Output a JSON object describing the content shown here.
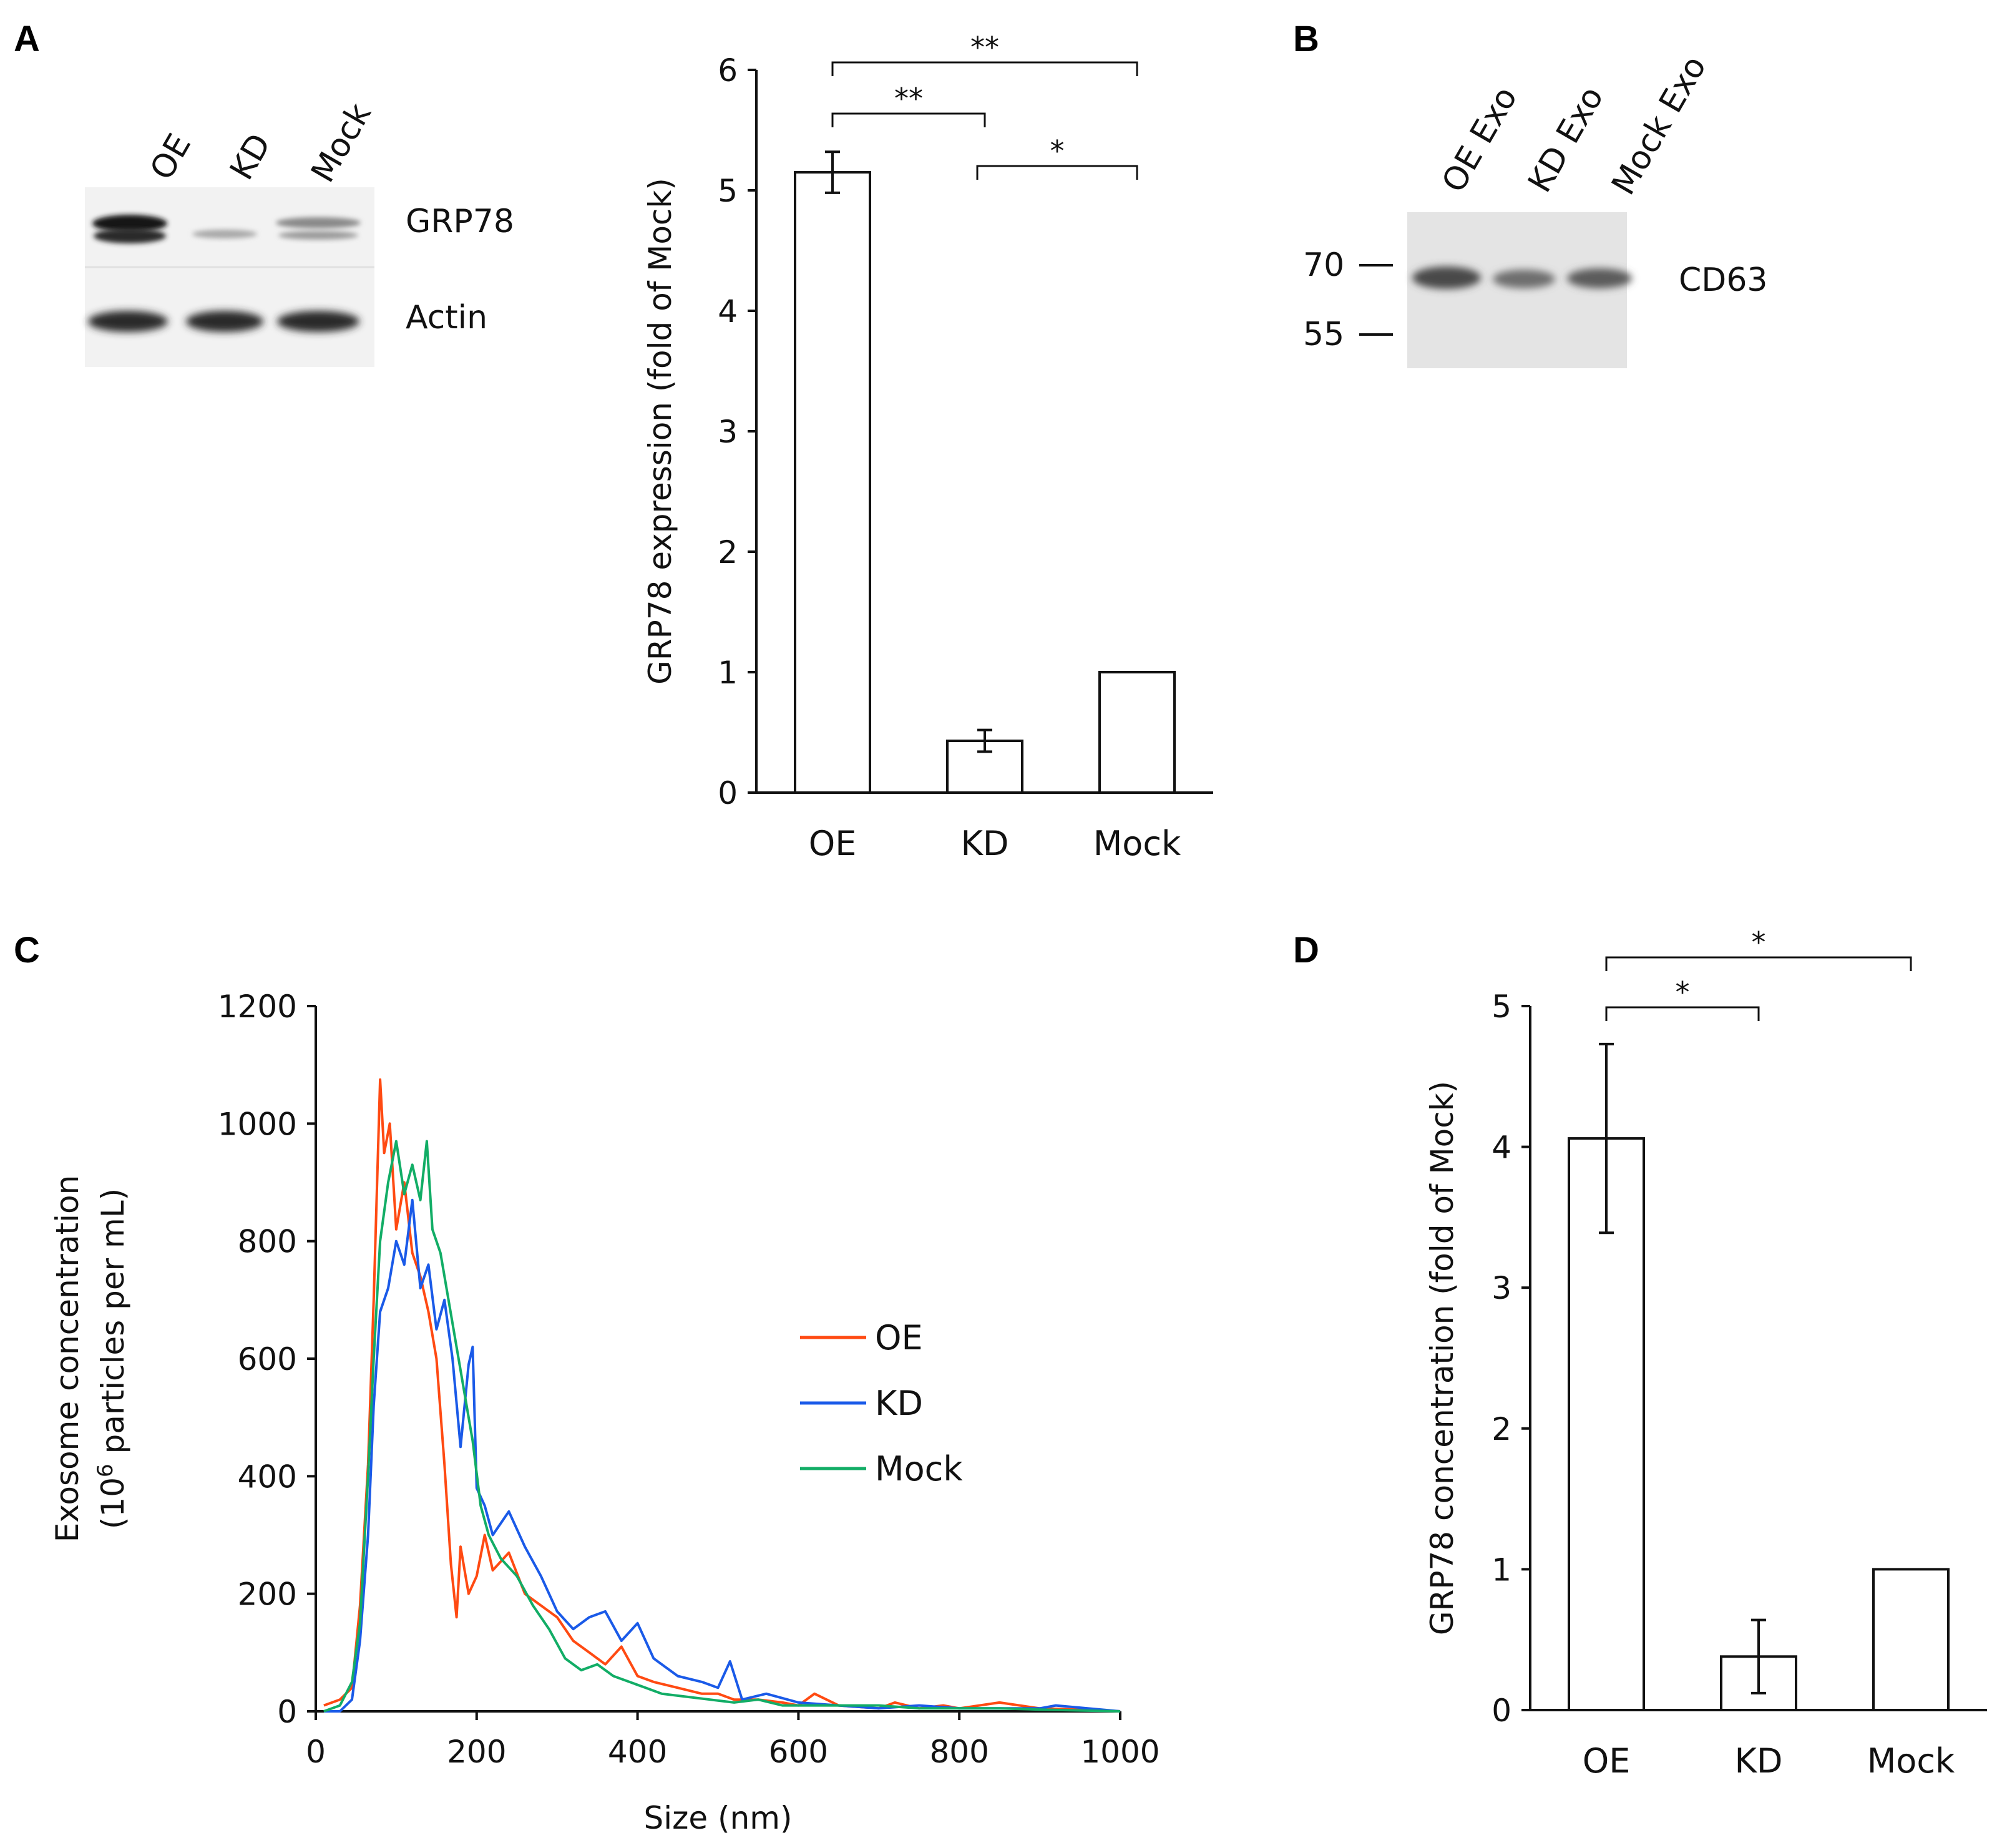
{
  "panels": {
    "A": {
      "letter": "A",
      "blot": {
        "lanes": [
          "OE",
          "KD",
          "Mock"
        ],
        "bands": [
          "GRP78",
          "Actin"
        ]
      },
      "chart_data": {
        "type": "bar",
        "categories": [
          "OE",
          "KD",
          "Mock"
        ],
        "values": [
          5.15,
          0.43,
          1.0
        ],
        "errors": [
          0.17,
          0.09,
          0
        ],
        "ylabel": "GRP78 expression (fold of Mock)",
        "xlabel": "",
        "ylim": [
          0,
          6
        ],
        "yticks": [
          "0",
          "1",
          "2",
          "3",
          "4",
          "5",
          "6"
        ],
        "significance": [
          {
            "from": "OE",
            "to": "Mock",
            "label": "**"
          },
          {
            "from": "OE",
            "to": "KD",
            "label": "**"
          },
          {
            "from": "KD",
            "to": "Mock",
            "label": "*"
          }
        ]
      }
    },
    "B": {
      "letter": "B",
      "lanes": [
        "OE Exo",
        "KD Exo",
        "Mock Exo"
      ],
      "markers": [
        "70",
        "55"
      ],
      "band": "CD63"
    },
    "C": {
      "letter": "C",
      "chart_data": {
        "type": "line",
        "xlabel": "Size (nm)",
        "ylabel_line1": "Exosome concentration",
        "ylabel_line2_pre": "(10",
        "ylabel_line2_sup": "6",
        "ylabel_line2_post": " particles per mL)",
        "xlim": [
          0,
          1000
        ],
        "ylim": [
          0,
          1200
        ],
        "xticks": [
          "0",
          "200",
          "400",
          "600",
          "800",
          "1000"
        ],
        "yticks": [
          "0",
          "200",
          "400",
          "600",
          "800",
          "1000",
          "1200"
        ],
        "series": [
          {
            "name": "OE",
            "color": "#ff4a12",
            "x": [
              10,
              30,
              45,
              55,
              65,
              72,
              80,
              85,
              92,
              100,
              110,
              120,
              130,
              140,
              150,
              160,
              168,
              175,
              180,
              190,
              200,
              210,
              220,
              240,
              260,
              280,
              300,
              320,
              340,
              360,
              380,
              400,
              420,
              450,
              480,
              500,
              520,
              550,
              580,
              600,
              620,
              650,
              700,
              720,
              750,
              780,
              800,
              850,
              900,
              950,
              1000
            ],
            "y": [
              10,
              20,
              40,
              180,
              420,
              700,
              1075,
              950,
              1000,
              820,
              900,
              780,
              740,
              680,
              600,
              420,
              250,
              160,
              280,
              200,
              230,
              300,
              240,
              270,
              200,
              180,
              160,
              120,
              100,
              80,
              110,
              60,
              50,
              40,
              30,
              30,
              20,
              20,
              15,
              10,
              30,
              10,
              5,
              15,
              5,
              10,
              5,
              15,
              5,
              3,
              0
            ]
          },
          {
            "name": "KD",
            "color": "#1a5ae8",
            "x": [
              10,
              30,
              45,
              55,
              65,
              72,
              80,
              90,
              100,
              110,
              120,
              130,
              140,
              150,
              160,
              170,
              180,
              190,
              195,
              200,
              210,
              220,
              240,
              260,
              280,
              300,
              320,
              340,
              360,
              380,
              400,
              420,
              450,
              480,
              500,
              515,
              530,
              560,
              600,
              650,
              700,
              750,
              800,
              850,
              900,
              920,
              1000
            ],
            "y": [
              0,
              0,
              20,
              120,
              300,
              520,
              680,
              720,
              800,
              760,
              870,
              720,
              760,
              650,
              700,
              600,
              450,
              590,
              620,
              380,
              350,
              300,
              340,
              280,
              230,
              170,
              140,
              160,
              170,
              120,
              150,
              90,
              60,
              50,
              40,
              85,
              20,
              30,
              15,
              10,
              5,
              10,
              5,
              5,
              5,
              10,
              0
            ]
          },
          {
            "name": "Mock",
            "color": "#12ad66",
            "x": [
              10,
              30,
              45,
              55,
              65,
              72,
              80,
              90,
              100,
              110,
              120,
              130,
              138,
              145,
              155,
              165,
              175,
              185,
              195,
              205,
              215,
              230,
              250,
              270,
              290,
              310,
              330,
              350,
              370,
              390,
              410,
              430,
              460,
              490,
              520,
              550,
              580,
              620,
              660,
              700,
              750,
              800,
              850,
              900,
              1000
            ],
            "y": [
              0,
              10,
              50,
              150,
              400,
              600,
              800,
              900,
              970,
              880,
              930,
              870,
              970,
              820,
              780,
              700,
              620,
              540,
              460,
              350,
              300,
              260,
              230,
              180,
              140,
              90,
              70,
              80,
              60,
              50,
              40,
              30,
              25,
              20,
              15,
              20,
              10,
              10,
              10,
              10,
              5,
              5,
              5,
              3,
              0
            ]
          }
        ],
        "legend_position": "center-right"
      }
    },
    "D": {
      "letter": "D",
      "chart_data": {
        "type": "bar",
        "categories": [
          "OE",
          "KD",
          "Mock"
        ],
        "values": [
          4.06,
          0.38,
          1.0
        ],
        "errors": [
          0.67,
          0.26,
          0
        ],
        "ylabel": "GRP78 concentration (fold of Mock)",
        "xlabel": "",
        "ylim": [
          0,
          5
        ],
        "yticks": [
          "0",
          "1",
          "2",
          "3",
          "4",
          "5"
        ],
        "significance": [
          {
            "from": "OE",
            "to": "Mock",
            "label": "*"
          },
          {
            "from": "OE",
            "to": "KD",
            "label": "*"
          }
        ]
      }
    }
  }
}
